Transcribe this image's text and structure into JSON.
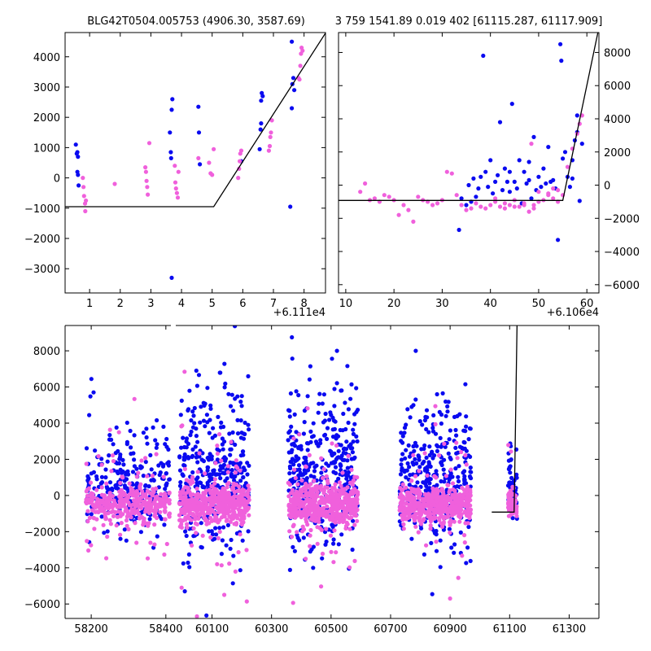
{
  "colors": {
    "blue": "#0a0af0",
    "pink": "#f060dc",
    "line": "#000000"
  },
  "chart_data": [
    {
      "id": "panel-top-left",
      "type": "scatter",
      "title": "BLG42T0504.005753 (4906.30, 3587.69)",
      "offset_label": "+6.111e4",
      "xlim": [
        0.2,
        8.7
      ],
      "ylim": [
        -3800,
        4800
      ],
      "xticks": [
        1,
        2,
        3,
        4,
        5,
        6,
        7,
        8
      ],
      "xtick_labels": [
        "1",
        "2",
        "3",
        "4",
        "5",
        "6",
        "7",
        "8"
      ],
      "yticks": [
        -3000,
        -2000,
        -1000,
        0,
        1000,
        2000,
        3000,
        4000
      ],
      "ytick_labels": [
        "−3000",
        "−2000",
        "−1000",
        "0",
        "1000",
        "2000",
        "3000",
        "4000"
      ],
      "yaxis_side": "left",
      "model": [
        [
          0.2,
          -950
        ],
        [
          5.05,
          -950
        ],
        [
          8.7,
          4780
        ]
      ],
      "series": [
        {
          "name": "blue",
          "points": [
            [
              0.55,
              1100
            ],
            [
              0.58,
              800
            ],
            [
              0.6,
              850
            ],
            [
              0.62,
              700
            ],
            [
              0.6,
              200
            ],
            [
              0.62,
              100
            ],
            [
              0.64,
              -250
            ],
            [
              3.62,
              1500
            ],
            [
              3.65,
              850
            ],
            [
              3.66,
              650
            ],
            [
              3.68,
              2250
            ],
            [
              3.7,
              2600
            ],
            [
              3.68,
              -3300
            ],
            [
              4.55,
              2350
            ],
            [
              4.57,
              1500
            ],
            [
              4.6,
              450
            ],
            [
              5.95,
              550
            ],
            [
              6.55,
              950
            ],
            [
              6.58,
              1600
            ],
            [
              6.6,
              1800
            ],
            [
              6.6,
              2550
            ],
            [
              6.62,
              2800
            ],
            [
              6.65,
              2700
            ],
            [
              7.55,
              -950
            ],
            [
              7.6,
              2300
            ],
            [
              7.62,
              3100
            ],
            [
              7.65,
              3300
            ],
            [
              7.6,
              4500
            ],
            [
              7.68,
              2900
            ]
          ]
        },
        {
          "name": "pink",
          "points": [
            [
              0.78,
              0
            ],
            [
              0.8,
              -300
            ],
            [
              0.82,
              -600
            ],
            [
              0.85,
              -850
            ],
            [
              0.86,
              -1100
            ],
            [
              0.88,
              -750
            ],
            [
              1.82,
              -200
            ],
            [
              2.82,
              350
            ],
            [
              2.84,
              200
            ],
            [
              2.86,
              -100
            ],
            [
              2.88,
              -300
            ],
            [
              2.9,
              -550
            ],
            [
              2.95,
              1150
            ],
            [
              3.78,
              400
            ],
            [
              3.8,
              -150
            ],
            [
              3.82,
              -350
            ],
            [
              3.85,
              -500
            ],
            [
              3.88,
              -650
            ],
            [
              3.9,
              200
            ],
            [
              4.55,
              650
            ],
            [
              4.9,
              500
            ],
            [
              4.95,
              150
            ],
            [
              5.0,
              100
            ],
            [
              5.05,
              950
            ],
            [
              5.85,
              0
            ],
            [
              5.88,
              300
            ],
            [
              5.9,
              550
            ],
            [
              5.92,
              800
            ],
            [
              5.95,
              900
            ],
            [
              6.85,
              900
            ],
            [
              6.88,
              1050
            ],
            [
              6.9,
              1350
            ],
            [
              6.92,
              1500
            ],
            [
              6.95,
              1900
            ],
            [
              7.82,
              3300
            ],
            [
              7.85,
              3250
            ],
            [
              7.88,
              3700
            ],
            [
              7.9,
              4100
            ],
            [
              7.92,
              4300
            ],
            [
              7.95,
              4200
            ]
          ]
        }
      ]
    },
    {
      "id": "panel-top-right",
      "type": "scatter",
      "title": "3 759 1541.89 0.019 402 [61115.287, 61117.909]",
      "offset_label": "+6.106e4",
      "xlim": [
        8.5,
        62.5
      ],
      "ylim": [
        -6500,
        9200
      ],
      "xticks": [
        10,
        20,
        30,
        40,
        50,
        60
      ],
      "xtick_labels": [
        "10",
        "20",
        "30",
        "40",
        "50",
        "60"
      ],
      "yticks": [
        -6000,
        -4000,
        -2000,
        0,
        2000,
        4000,
        6000,
        8000
      ],
      "ytick_labels": [
        "−6000",
        "−4000",
        "−2000",
        "0",
        "2000",
        "4000",
        "6000",
        "8000"
      ],
      "yaxis_side": "right",
      "model": [
        [
          8.5,
          -920
        ],
        [
          55.0,
          -920
        ],
        [
          62.5,
          9500
        ]
      ],
      "series": [
        {
          "name": "blue",
          "points": [
            [
              33.5,
              -2700
            ],
            [
              34,
              -800
            ],
            [
              35,
              -1200
            ],
            [
              36,
              -1000
            ],
            [
              37,
              -700
            ],
            [
              38,
              500
            ],
            [
              38.5,
              7800
            ],
            [
              39,
              800
            ],
            [
              40,
              1500
            ],
            [
              40.5,
              -500
            ],
            [
              41,
              200
            ],
            [
              42,
              3800
            ],
            [
              43,
              1000
            ],
            [
              44,
              -400
            ],
            [
              44.5,
              4900
            ],
            [
              45,
              200
            ],
            [
              46,
              1500
            ],
            [
              46.5,
              -1100
            ],
            [
              47,
              800
            ],
            [
              48,
              1400
            ],
            [
              48.5,
              -800
            ],
            [
              49,
              2900
            ],
            [
              50,
              500
            ],
            [
              51,
              1000
            ],
            [
              52,
              2300
            ],
            [
              53,
              300
            ],
            [
              54,
              -3300
            ],
            [
              54.5,
              8500
            ],
            [
              54.7,
              7500
            ],
            [
              55,
              1600
            ],
            [
              56,
              500
            ],
            [
              57,
              1500
            ],
            [
              57.5,
              2700
            ],
            [
              58,
              4200
            ],
            [
              58.5,
              -950
            ],
            [
              59,
              2500
            ],
            [
              35.5,
              0
            ],
            [
              36.5,
              400
            ],
            [
              37.5,
              -200
            ],
            [
              39.5,
              -100
            ],
            [
              41.5,
              600
            ],
            [
              42.5,
              -300
            ],
            [
              43.5,
              200
            ],
            [
              44,
              800
            ],
            [
              45.5,
              -200
            ],
            [
              47.5,
              100
            ],
            [
              48,
              300
            ],
            [
              49.5,
              -300
            ],
            [
              50.5,
              -100
            ],
            [
              51.5,
              100
            ],
            [
              52.5,
              200
            ],
            [
              53.5,
              -200
            ],
            [
              55.5,
              2000
            ],
            [
              56.5,
              -100
            ],
            [
              57,
              400
            ],
            [
              58,
              3200
            ]
          ]
        },
        {
          "name": "pink",
          "points": [
            [
              13,
              -400
            ],
            [
              14,
              100
            ],
            [
              15,
              -900
            ],
            [
              16,
              -800
            ],
            [
              17,
              -1000
            ],
            [
              18,
              -600
            ],
            [
              19,
              -700
            ],
            [
              20,
              -900
            ],
            [
              21,
              -1800
            ],
            [
              22,
              -1200
            ],
            [
              23,
              -1500
            ],
            [
              24,
              -2200
            ],
            [
              25,
              -700
            ],
            [
              26,
              -900
            ],
            [
              27,
              -1000
            ],
            [
              28,
              -1200
            ],
            [
              29,
              -1100
            ],
            [
              30,
              -900
            ],
            [
              31,
              800
            ],
            [
              32,
              700
            ],
            [
              33,
              -600
            ],
            [
              34,
              -1200
            ],
            [
              35,
              -1500
            ],
            [
              36,
              -1400
            ],
            [
              37,
              -1100
            ],
            [
              38,
              -1300
            ],
            [
              39,
              -1400
            ],
            [
              40,
              -1200
            ],
            [
              41,
              -800
            ],
            [
              42,
              -1300
            ],
            [
              43,
              -1400
            ],
            [
              44,
              -1200
            ],
            [
              45,
              -1300
            ],
            [
              46,
              -1300
            ],
            [
              47,
              -1100
            ],
            [
              48,
              -1600
            ],
            [
              49,
              -1200
            ],
            [
              50,
              -1000
            ],
            [
              51,
              -900
            ],
            [
              52,
              -600
            ],
            [
              53,
              -800
            ],
            [
              54,
              -1000
            ],
            [
              55,
              -600
            ],
            [
              48.5,
              2500
            ],
            [
              50,
              -400
            ],
            [
              52,
              -500
            ],
            [
              53,
              -200
            ],
            [
              54,
              -300
            ],
            [
              56,
              1100
            ],
            [
              57,
              2200
            ],
            [
              58,
              3100
            ],
            [
              58.5,
              3700
            ],
            [
              59,
              4200
            ],
            [
              41,
              -1000
            ],
            [
              43,
              -1100
            ],
            [
              45,
              -900
            ],
            [
              47,
              -1200
            ],
            [
              49,
              -1400
            ]
          ]
        }
      ]
    },
    {
      "id": "panel-bottom",
      "type": "scatter",
      "title": "",
      "yaxis_side": "left",
      "ylim": [
        -6800,
        9400
      ],
      "yticks": [
        -6000,
        -4000,
        -2000,
        0,
        2000,
        4000,
        6000,
        8000
      ],
      "ytick_labels": [
        "−6000",
        "−4000",
        "−2000",
        "0",
        "2000",
        "4000",
        "6000",
        "8000"
      ],
      "segments": [
        {
          "xlim": [
            58130,
            58420
          ],
          "xticks": [
            58200,
            58400
          ],
          "xtick_labels": [
            "58200",
            "58400"
          ]
        },
        {
          "xlim": [
            59970,
            61400
          ],
          "xticks": [
            60100,
            60300,
            60500,
            60700,
            60900,
            61100,
            61300
          ],
          "xtick_labels": [
            "60100",
            "60300",
            "60500",
            "60700",
            "60900",
            "61100",
            "61300"
          ]
        }
      ],
      "clusters": [
        {
          "segment": 0,
          "x_range": [
            58185,
            58410
          ],
          "blue_spread": 3500,
          "pink_spread": 900,
          "n": 260,
          "seed": 11
        },
        {
          "segment": 1,
          "x_range": [
            59990,
            60225
          ],
          "blue_spread": 5200,
          "pink_spread": 1000,
          "n": 380,
          "seed": 23
        },
        {
          "segment": 1,
          "x_range": [
            60355,
            60590
          ],
          "blue_spread": 5500,
          "pink_spread": 1000,
          "n": 380,
          "seed": 37
        },
        {
          "segment": 1,
          "x_range": [
            60730,
            60970
          ],
          "blue_spread": 4800,
          "pink_spread": 950,
          "n": 360,
          "seed": 51
        },
        {
          "segment": 1,
          "x_range": [
            61095,
            61125
          ],
          "blue_spread": 2200,
          "pink_spread": 500,
          "n": 60,
          "seed": 67
        }
      ],
      "model": [
        [
          61040,
          -920
        ],
        [
          61115,
          -920
        ],
        [
          61125,
          9500
        ]
      ],
      "model_segment": 1
    }
  ]
}
